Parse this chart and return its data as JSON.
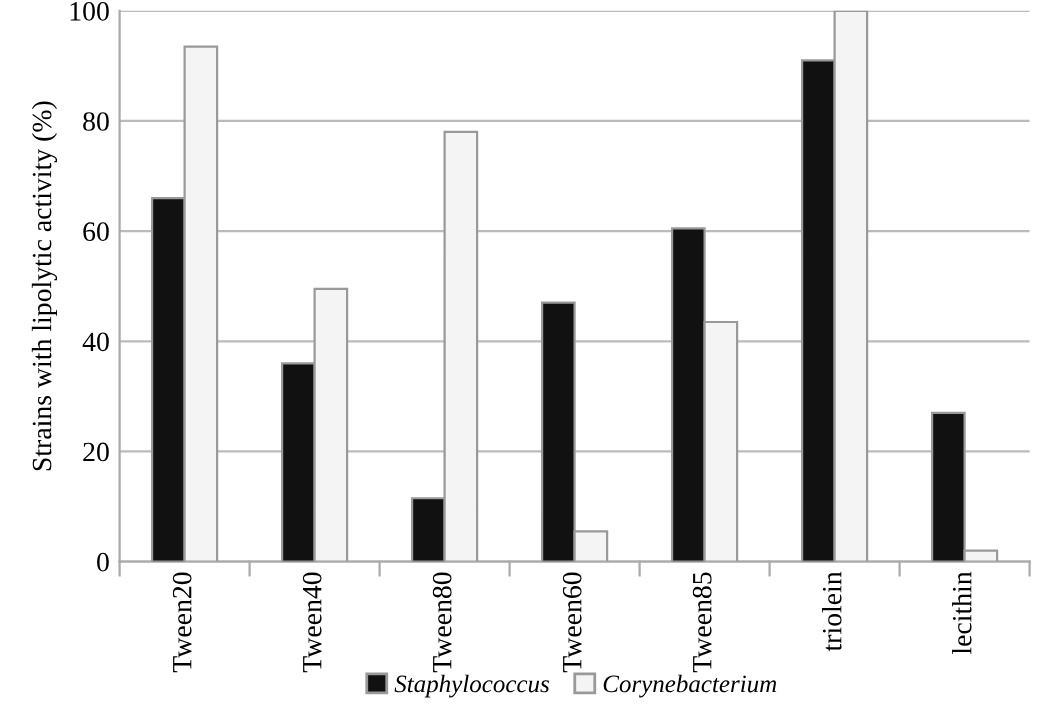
{
  "chart_data": {
    "type": "bar",
    "ylabel": "Strains with lipolytic activity (%)",
    "categories": [
      "Tween20",
      "Tween40",
      "Tween80",
      "Tween60",
      "Tween85",
      "triolein",
      "lecithin"
    ],
    "series": [
      {
        "name": "Staphylococcus",
        "color": "#111111",
        "values": [
          66,
          36,
          11.5,
          47,
          60.5,
          91,
          27
        ]
      },
      {
        "name": "Corynebacterium",
        "color": "#f4f4f4",
        "values": [
          93.5,
          49.5,
          78,
          5.5,
          43.5,
          100,
          2
        ]
      }
    ],
    "ylim": [
      0,
      100
    ],
    "yticks": [
      0,
      20,
      40,
      60,
      80,
      100
    ],
    "grid": "y",
    "legend": "bottom"
  }
}
